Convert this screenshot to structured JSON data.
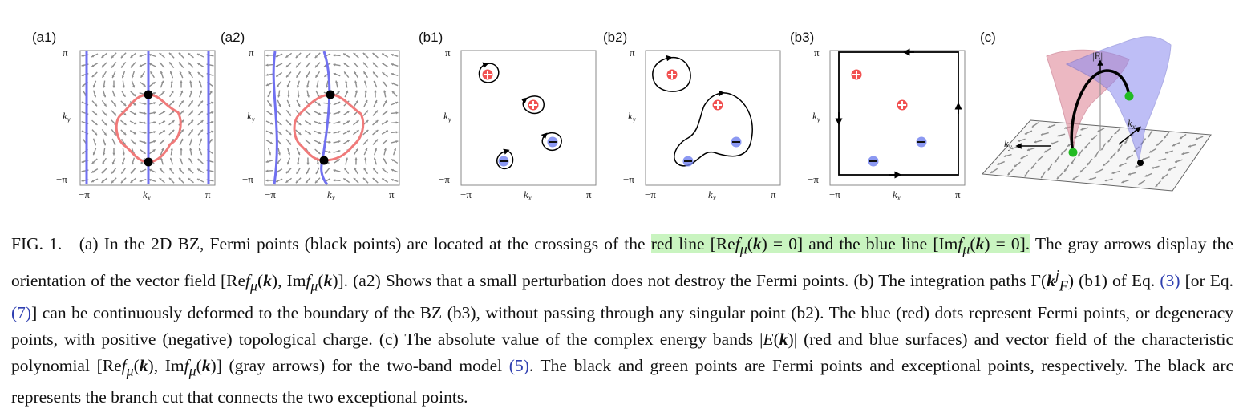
{
  "figure": {
    "panels": [
      {
        "id": "a1",
        "label": "(a1)"
      },
      {
        "id": "a2",
        "label": "(a2)"
      },
      {
        "id": "b1",
        "label": "(b1)"
      },
      {
        "id": "b2",
        "label": "(b2)"
      },
      {
        "id": "b3",
        "label": "(b3)"
      },
      {
        "id": "c",
        "label": "(c)"
      }
    ],
    "axis": {
      "pi": "π",
      "minus_pi": "−π",
      "kx": "k",
      "kx_sub": "x",
      "ky": "k",
      "ky_sub": "y"
    },
    "panel_c": {
      "energy_label": "|E|",
      "kx_label": "k",
      "kx_sub": "x",
      "ky_label": "k",
      "ky_sub": "y"
    },
    "colors": {
      "arrow": "#8e8e8e",
      "red_line": "#f07a7a",
      "blue_line": "#7070f0",
      "charge_red": "#ee3333",
      "charge_blue": "#6f7fef",
      "fermi_point": "#000000",
      "exceptional_point": "#22bb22",
      "highlight": "#c9f4c0"
    }
  },
  "caption": {
    "fig": "FIG. 1.",
    "s1": "(a) In the 2D BZ, Fermi points (black points) are located at the crossings of the",
    "hl_a": "red line [Re",
    "hl_b": "(",
    "hl_c": ") = 0] and the blue line [Im",
    "hl_d": "(",
    "hl_e": ") = 0].",
    "s2": "The gray arrows display the orientation of the vector field [Re",
    "s3": "), Im",
    "s4": ")]. (a2) Shows that a small perturbation does not destroy the Fermi points. (b) The integration paths Γ(",
    "s5": ") (b1) of Eq.",
    "eq3": "(3)",
    "s6": "[or Eq.",
    "eq7": "(7)",
    "s7": "] can be continuously deformed to the boundary of the BZ (b3), without passing through any singular point (b2). The blue (red) dots represent Fermi points, or degeneracy points, with positive (negative) topological charge. (c) The absolute value of the complex energy bands |",
    "s8": ")| (red and blue surfaces) and vector field of the characteristic polynomial [Re",
    "s9": "), Im",
    "s10": ")] (gray arrows) for the two-band model",
    "eq5": "(5)",
    "s11": ". The black and green points are Fermi points and exceptional points, respectively. The black arc represents the branch cut that connects the two exceptional points.",
    "f": "f",
    "mu": "μ",
    "k": "k",
    "E": "E",
    "F": "F",
    "j": "j"
  }
}
